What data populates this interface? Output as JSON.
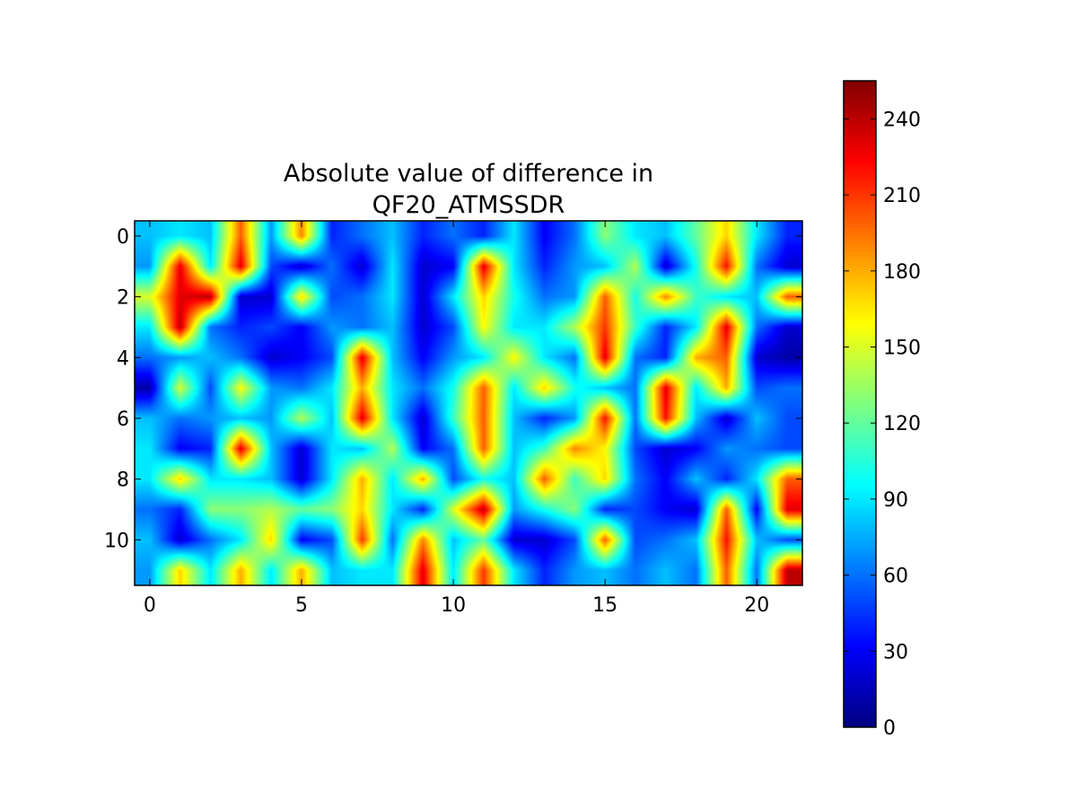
{
  "chart_data": {
    "type": "heatmap",
    "title": "Absolute value of difference in\nQF20_ATMSSDR",
    "title_lines": [
      "Absolute value of difference in",
      "QF20_ATMSSDR"
    ],
    "colormap": "jet",
    "interpolation": "bilinear",
    "n_rows": 12,
    "n_cols": 22,
    "x_ticks": [
      0,
      5,
      10,
      15,
      20
    ],
    "y_ticks": [
      0,
      2,
      4,
      6,
      8,
      10
    ],
    "xlim": [
      -0.5,
      21.5
    ],
    "ylim": [
      11.5,
      -0.5
    ],
    "y_axis_inverted": true,
    "colorbar": {
      "range": [
        0,
        255
      ],
      "ticks": [
        0,
        30,
        60,
        90,
        120,
        150,
        180,
        210,
        240
      ]
    },
    "values": [
      [
        80,
        90,
        80,
        200,
        70,
        190,
        40,
        60,
        80,
        40,
        60,
        40,
        90,
        30,
        60,
        130,
        90,
        80,
        120,
        170,
        90,
        40
      ],
      [
        70,
        230,
        90,
        230,
        50,
        20,
        60,
        20,
        90,
        20,
        30,
        230,
        90,
        40,
        70,
        80,
        140,
        20,
        100,
        220,
        60,
        20
      ],
      [
        150,
        230,
        240,
        20,
        20,
        170,
        50,
        60,
        90,
        20,
        90,
        170,
        100,
        60,
        70,
        200,
        100,
        190,
        110,
        90,
        80,
        200
      ],
      [
        90,
        240,
        60,
        40,
        50,
        30,
        70,
        60,
        80,
        20,
        50,
        160,
        90,
        90,
        140,
        210,
        110,
        40,
        90,
        230,
        60,
        20
      ],
      [
        60,
        70,
        80,
        60,
        20,
        30,
        50,
        230,
        80,
        30,
        70,
        90,
        160,
        90,
        60,
        230,
        60,
        40,
        180,
        200,
        20,
        10
      ],
      [
        10,
        150,
        50,
        160,
        70,
        60,
        90,
        180,
        90,
        60,
        100,
        200,
        90,
        170,
        100,
        80,
        60,
        230,
        90,
        180,
        50,
        60
      ],
      [
        80,
        60,
        70,
        80,
        70,
        140,
        80,
        230,
        90,
        20,
        110,
        200,
        80,
        40,
        70,
        220,
        60,
        220,
        80,
        20,
        80,
        50
      ],
      [
        90,
        30,
        40,
        230,
        80,
        20,
        90,
        80,
        140,
        30,
        60,
        200,
        80,
        110,
        190,
        160,
        50,
        20,
        30,
        70,
        60,
        50
      ],
      [
        90,
        170,
        90,
        90,
        80,
        20,
        90,
        180,
        90,
        180,
        50,
        100,
        80,
        200,
        110,
        170,
        60,
        30,
        80,
        40,
        90,
        200
      ],
      [
        60,
        40,
        130,
        130,
        140,
        120,
        130,
        170,
        90,
        40,
        150,
        240,
        70,
        100,
        130,
        40,
        50,
        30,
        20,
        200,
        30,
        230
      ],
      [
        80,
        20,
        60,
        90,
        170,
        30,
        50,
        210,
        60,
        190,
        80,
        120,
        20,
        20,
        50,
        200,
        50,
        60,
        80,
        220,
        80,
        50
      ],
      [
        70,
        170,
        90,
        180,
        90,
        180,
        80,
        90,
        90,
        230,
        90,
        210,
        90,
        40,
        70,
        80,
        60,
        80,
        60,
        200,
        60,
        240
      ]
    ]
  }
}
